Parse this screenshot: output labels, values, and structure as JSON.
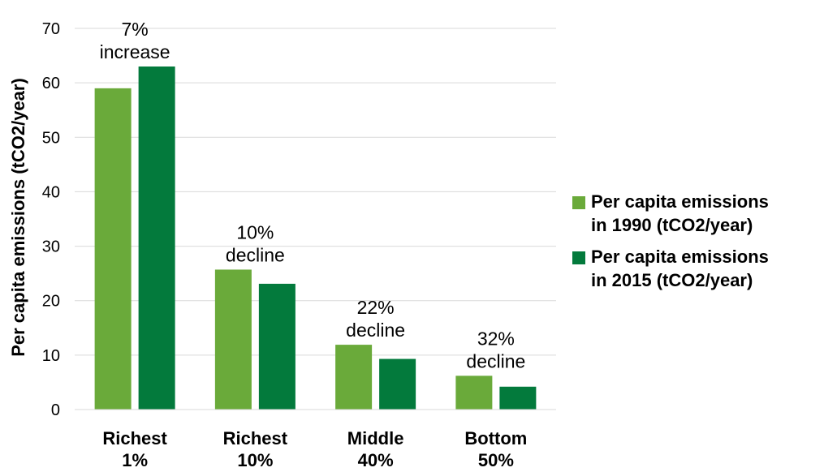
{
  "chart_data": {
    "type": "bar",
    "ylabel": "Per capita emissions (tCO2/year)",
    "xlabel": "",
    "ylim": [
      0,
      70
    ],
    "yticks": [
      0,
      10,
      20,
      30,
      40,
      50,
      60,
      70
    ],
    "grid": true,
    "legend_position": "right",
    "categories": [
      [
        "Richest",
        "1%"
      ],
      [
        "Richest",
        "10%"
      ],
      [
        "Middle",
        "40%"
      ],
      [
        "Bottom",
        "50%"
      ]
    ],
    "series": [
      {
        "name": [
          "Per capita emissions",
          "in 1990 (tCO2/year)"
        ],
        "color": "#6aaa3a",
        "values": [
          59,
          25.7,
          11.9,
          6.2
        ]
      },
      {
        "name": [
          "Per capita emissions",
          "in 2015 (tCO2/year)"
        ],
        "color": "#037a3c",
        "values": [
          63,
          23.1,
          9.3,
          4.2
        ]
      }
    ],
    "annotations": [
      [
        "7%",
        "increase"
      ],
      [
        "10%",
        "decline"
      ],
      [
        "22%",
        "decline"
      ],
      [
        "32%",
        "decline"
      ]
    ]
  }
}
